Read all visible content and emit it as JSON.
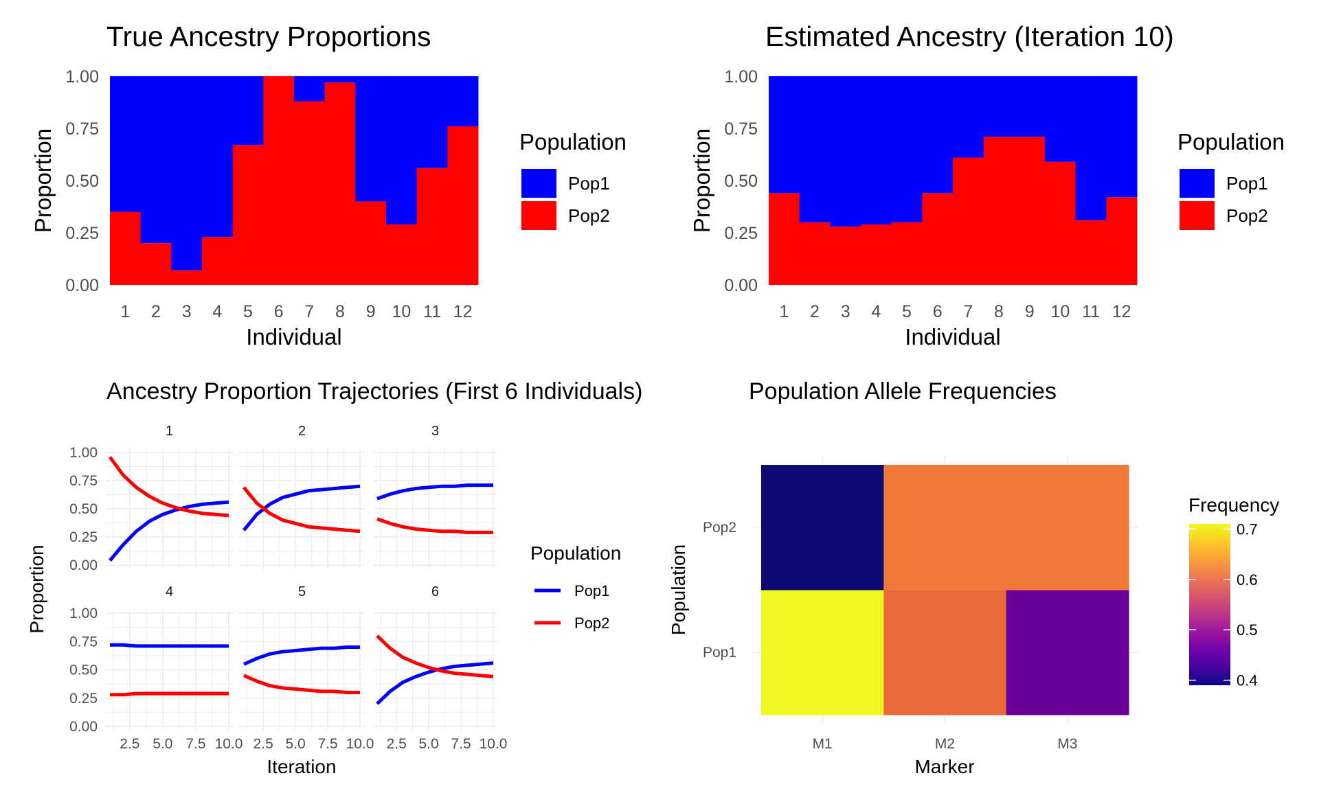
{
  "chart_data": [
    {
      "type": "bar",
      "stacked": true,
      "title": "True Ancestry Proportions",
      "xlabel": "Individual",
      "ylabel": "Proportion",
      "ylim": [
        0,
        1
      ],
      "yticks": [
        "0.00",
        "0.25",
        "0.50",
        "0.75",
        "1.00"
      ],
      "categories": [
        "1",
        "2",
        "3",
        "4",
        "5",
        "6",
        "7",
        "8",
        "9",
        "10",
        "11",
        "12"
      ],
      "series": [
        {
          "name": "Pop1",
          "color": "#0000FF",
          "values": [
            0.65,
            0.8,
            0.93,
            0.77,
            0.33,
            0.0,
            0.12,
            0.03,
            0.6,
            0.71,
            0.44,
            0.24
          ]
        },
        {
          "name": "Pop2",
          "color": "#FF0000",
          "values": [
            0.35,
            0.2,
            0.07,
            0.23,
            0.67,
            1.0,
            0.88,
            0.97,
            0.4,
            0.29,
            0.56,
            0.76
          ]
        }
      ],
      "legend": {
        "title": "Population",
        "position": "right"
      },
      "grid": true
    },
    {
      "type": "bar",
      "stacked": true,
      "title": "Estimated Ancestry (Iteration 10)",
      "xlabel": "Individual",
      "ylabel": "Proportion",
      "ylim": [
        0,
        1
      ],
      "yticks": [
        "0.00",
        "0.25",
        "0.50",
        "0.75",
        "1.00"
      ],
      "categories": [
        "1",
        "2",
        "3",
        "4",
        "5",
        "6",
        "7",
        "8",
        "9",
        "10",
        "11",
        "12"
      ],
      "series": [
        {
          "name": "Pop1",
          "color": "#0000FF",
          "values": [
            0.56,
            0.7,
            0.72,
            0.71,
            0.7,
            0.56,
            0.39,
            0.29,
            0.29,
            0.41,
            0.69,
            0.58
          ]
        },
        {
          "name": "Pop2",
          "color": "#FF0000",
          "values": [
            0.44,
            0.3,
            0.28,
            0.29,
            0.3,
            0.44,
            0.61,
            0.71,
            0.71,
            0.59,
            0.31,
            0.42
          ]
        }
      ],
      "legend": {
        "title": "Population",
        "position": "right"
      },
      "grid": true
    },
    {
      "type": "line",
      "faceted": true,
      "title": "Ancestry Proportion Trajectories (First 6 Individuals)",
      "xlabel": "Iteration",
      "ylabel": "Proportion",
      "xlim": [
        1,
        10
      ],
      "ylim": [
        0,
        1
      ],
      "xticks": [
        "2.5",
        "5.0",
        "7.5",
        "10.0"
      ],
      "yticks": [
        "0.00",
        "0.25",
        "0.50",
        "0.75",
        "1.00"
      ],
      "x": [
        1,
        2,
        3,
        4,
        5,
        6,
        7,
        8,
        9,
        10
      ],
      "facets": [
        {
          "label": "1",
          "series": [
            {
              "name": "Pop1",
              "color": "#0000FF",
              "values": [
                0.04,
                0.18,
                0.3,
                0.39,
                0.45,
                0.49,
                0.52,
                0.54,
                0.55,
                0.56
              ]
            },
            {
              "name": "Pop2",
              "color": "#FF0000",
              "values": [
                0.96,
                0.8,
                0.69,
                0.61,
                0.55,
                0.51,
                0.48,
                0.46,
                0.45,
                0.44
              ]
            }
          ]
        },
        {
          "label": "2",
          "series": [
            {
              "name": "Pop1",
              "color": "#0000FF",
              "values": [
                0.31,
                0.45,
                0.54,
                0.6,
                0.63,
                0.66,
                0.67,
                0.68,
                0.69,
                0.7
              ]
            },
            {
              "name": "Pop2",
              "color": "#FF0000",
              "values": [
                0.69,
                0.55,
                0.46,
                0.4,
                0.37,
                0.34,
                0.33,
                0.32,
                0.31,
                0.3
              ]
            }
          ]
        },
        {
          "label": "3",
          "series": [
            {
              "name": "Pop1",
              "color": "#0000FF",
              "values": [
                0.59,
                0.63,
                0.66,
                0.68,
                0.69,
                0.7,
                0.7,
                0.71,
                0.71,
                0.71
              ]
            },
            {
              "name": "Pop2",
              "color": "#FF0000",
              "values": [
                0.41,
                0.37,
                0.34,
                0.32,
                0.31,
                0.3,
                0.3,
                0.29,
                0.29,
                0.29
              ]
            }
          ]
        },
        {
          "label": "4",
          "series": [
            {
              "name": "Pop1",
              "color": "#0000FF",
              "values": [
                0.72,
                0.72,
                0.71,
                0.71,
                0.71,
                0.71,
                0.71,
                0.71,
                0.71,
                0.71
              ]
            },
            {
              "name": "Pop2",
              "color": "#FF0000",
              "values": [
                0.28,
                0.28,
                0.29,
                0.29,
                0.29,
                0.29,
                0.29,
                0.29,
                0.29,
                0.29
              ]
            }
          ]
        },
        {
          "label": "5",
          "series": [
            {
              "name": "Pop1",
              "color": "#0000FF",
              "values": [
                0.55,
                0.6,
                0.64,
                0.66,
                0.67,
                0.68,
                0.69,
                0.69,
                0.7,
                0.7
              ]
            },
            {
              "name": "Pop2",
              "color": "#FF0000",
              "values": [
                0.45,
                0.4,
                0.36,
                0.34,
                0.33,
                0.32,
                0.31,
                0.31,
                0.3,
                0.3
              ]
            }
          ]
        },
        {
          "label": "6",
          "series": [
            {
              "name": "Pop1",
              "color": "#0000FF",
              "values": [
                0.2,
                0.31,
                0.39,
                0.44,
                0.48,
                0.51,
                0.53,
                0.54,
                0.55,
                0.56
              ]
            },
            {
              "name": "Pop2",
              "color": "#FF0000",
              "values": [
                0.8,
                0.69,
                0.61,
                0.56,
                0.52,
                0.49,
                0.47,
                0.46,
                0.45,
                0.44
              ]
            }
          ]
        }
      ],
      "legend": {
        "title": "Population",
        "position": "right"
      },
      "grid": true
    },
    {
      "type": "heatmap",
      "title": "Population Allele Frequencies",
      "xlabel": "Marker",
      "ylabel": "Population",
      "x": [
        "M1",
        "M2",
        "M3"
      ],
      "y": [
        "Pop1",
        "Pop2"
      ],
      "values": [
        {
          "x": "M1",
          "y": "Pop1",
          "value": 0.71,
          "color": "#EFF821"
        },
        {
          "x": "M2",
          "y": "Pop1",
          "value": 0.61,
          "color": "#EA6A3E"
        },
        {
          "x": "M3",
          "y": "Pop1",
          "value": 0.47,
          "color": "#6A0098"
        },
        {
          "x": "M1",
          "y": "Pop2",
          "value": 0.39,
          "color": "#0D0872"
        },
        {
          "x": "M2",
          "y": "Pop2",
          "value": 0.63,
          "color": "#F0793A"
        },
        {
          "x": "M3",
          "y": "Pop2",
          "value": 0.63,
          "color": "#F0793A"
        }
      ],
      "legend": {
        "title": "Frequency",
        "position": "right",
        "range": [
          0.39,
          0.71
        ],
        "ticks": [
          "0.4",
          "0.5",
          "0.6",
          "0.7"
        ]
      },
      "colormap": "plasma"
    }
  ]
}
